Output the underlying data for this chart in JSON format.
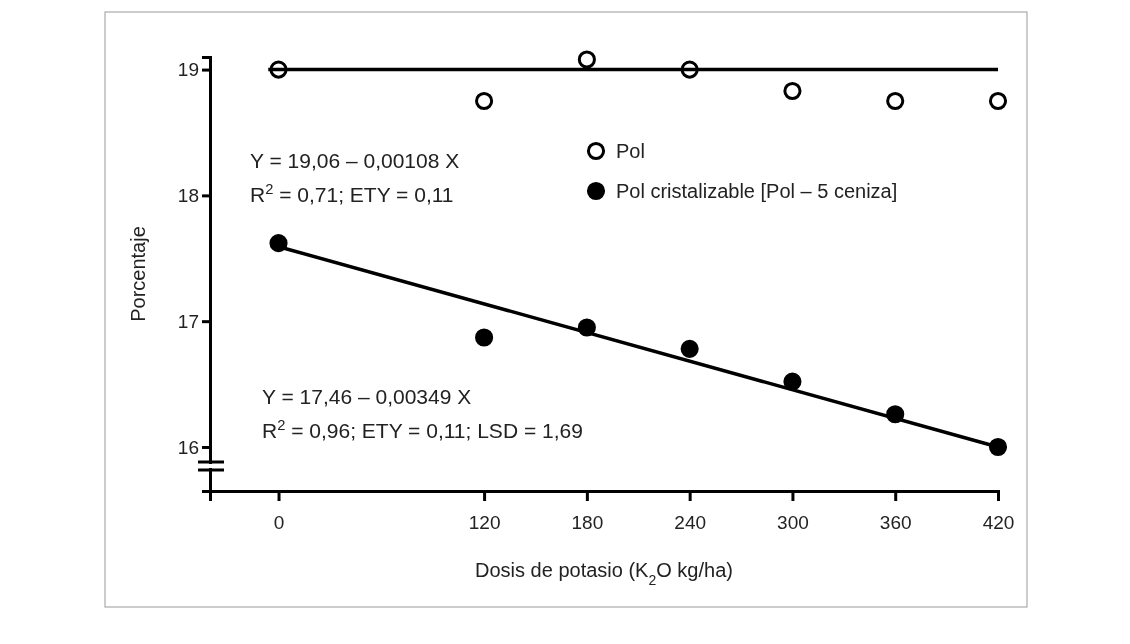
{
  "chart_data": {
    "type": "scatter",
    "xlabel": "Dosis de potasio (K$_{2}$O kg/ha)",
    "ylabel": "Porcentaje",
    "x": [
      0,
      120,
      180,
      240,
      300,
      360,
      420
    ],
    "series": [
      {
        "name": "Pol",
        "color": "#ffffff",
        "values": [
          19.0,
          18.75,
          19.08,
          19.0,
          18.83,
          18.75,
          18.75
        ]
      },
      {
        "name": "Pol cristalizable [Pol – 5 ceniza]",
        "color": "#000000",
        "values": [
          17.62,
          16.87,
          16.95,
          16.78,
          16.52,
          16.26,
          16.0
        ]
      },
      {
        "type": "line",
        "marker": "none",
        "color": "#000000",
        "x": [
          -6,
          420
        ],
        "values": [
          19.0,
          19.0
        ]
      },
      {
        "type": "line",
        "marker": "none",
        "color": "#000000",
        "x": [
          -2,
          420
        ],
        "values": [
          17.6,
          16.0
        ]
      }
    ],
    "annotations": [
      "Y = 19,06 – 0,00108 X",
      "R$^{2}$ = 0,71; ETY = 0,11",
      "Y = 17,46 – 0,00349 X",
      "R$^{2}$ = 0,96; ETY = 0,11; LSD = 1,69"
    ],
    "xlim": [
      -40,
      420
    ],
    "xticks": [
      0,
      120,
      180,
      240,
      300,
      360,
      420
    ],
    "ylim": [
      15.65,
      19.1
    ],
    "yticks": [
      16,
      17,
      18,
      19
    ],
    "marker": "circle",
    "legend": "top right",
    "grid": false
  }
}
